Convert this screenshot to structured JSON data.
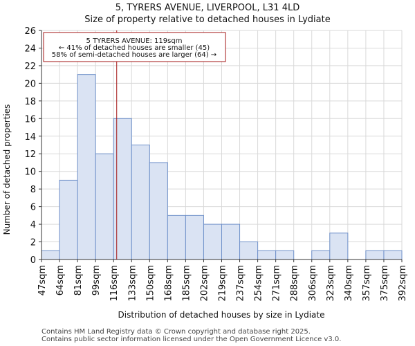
{
  "title_line1": "5, TYRERS AVENUE, LIVERPOOL, L31 4LD",
  "title_line2": "Size of property relative to detached houses in Lydiate",
  "footer_line1": "Contains HM Land Registry data © Crown copyright and database right 2025.",
  "footer_line2": "Contains public sector information licensed under the Open Government Licence v3.0.",
  "colors": {
    "bar_fill": "#dae3f3",
    "bar_stroke": "#6d8fc9",
    "marker": "#a31515",
    "annotation_border": "#a31515"
  },
  "chart_data": {
    "type": "bar",
    "xlabel": "Distribution of detached houses by size in Lydiate",
    "ylabel": "Number of detached properties",
    "ylim": [
      0,
      26
    ],
    "yticks": [
      0,
      2,
      4,
      6,
      8,
      10,
      12,
      14,
      16,
      18,
      20,
      22,
      24,
      26
    ],
    "bin_edges": [
      47,
      64,
      81,
      99,
      116,
      133,
      150,
      168,
      185,
      202,
      219,
      237,
      254,
      271,
      288,
      306,
      323,
      340,
      357,
      375,
      392
    ],
    "tick_labels": [
      "47sqm",
      "64sqm",
      "81sqm",
      "99sqm",
      "116sqm",
      "133sqm",
      "150sqm",
      "168sqm",
      "185sqm",
      "202sqm",
      "219sqm",
      "237sqm",
      "254sqm",
      "271sqm",
      "288sqm",
      "306sqm",
      "323sqm",
      "340sqm",
      "357sqm",
      "375sqm",
      "392sqm"
    ],
    "values": [
      1,
      9,
      21,
      12,
      16,
      13,
      11,
      5,
      5,
      4,
      4,
      2,
      1,
      1,
      0,
      1,
      3,
      0,
      1,
      1
    ],
    "marker_value": 119,
    "annotation": {
      "line1": "5 TYRERS AVENUE: 119sqm",
      "line2": "← 41% of detached houses are smaller (45)",
      "line3": "58% of semi-detached houses are larger (64) →"
    }
  }
}
